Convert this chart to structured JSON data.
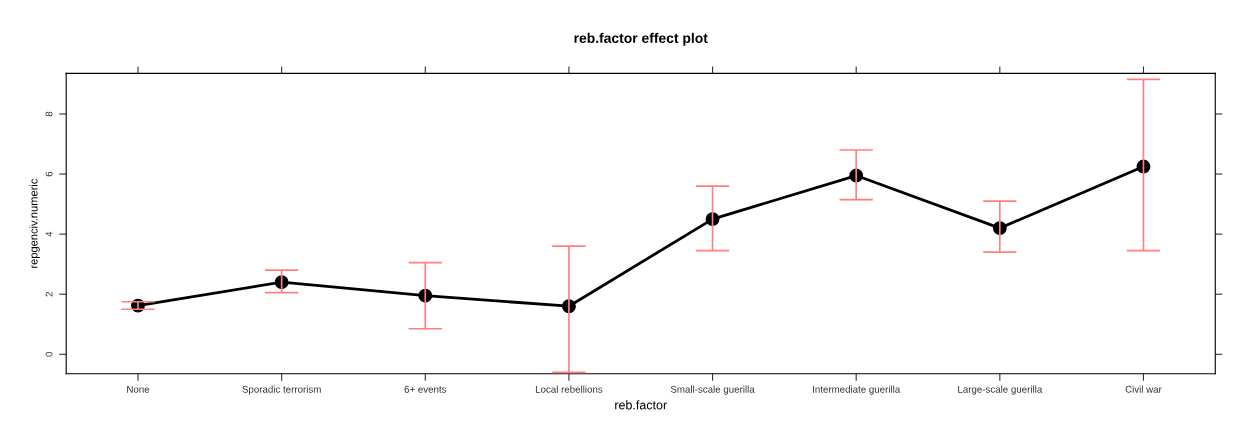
{
  "chart_data": {
    "type": "line",
    "title": "reb.factor effect plot",
    "xlabel": "reb.factor",
    "ylabel": "repgenciv.numeric",
    "categories": [
      "None",
      "Sporadic terrorism",
      "6+ events",
      "Local rebellions",
      "Small-scale guerilla",
      "Intermediate guerilla",
      "Large-scale guerilla",
      "Civil war"
    ],
    "series": [
      {
        "color": "#000000",
        "values": [
          1.62,
          2.4,
          1.95,
          1.6,
          4.5,
          5.95,
          4.2,
          6.25
        ],
        "errors": [
          [
            1.5,
            1.75
          ],
          [
            2.05,
            2.8
          ],
          [
            0.85,
            3.05
          ],
          [
            -0.6,
            3.6
          ],
          [
            3.45,
            5.6
          ],
          [
            5.15,
            6.8
          ],
          [
            3.4,
            5.1
          ],
          [
            3.45,
            9.15
          ]
        ]
      }
    ],
    "ylim": [
      -0.65,
      9.35
    ],
    "yticks": [
      0,
      2,
      4,
      6,
      8
    ],
    "marker": "circle",
    "line_style": "solid",
    "grid": false
  }
}
